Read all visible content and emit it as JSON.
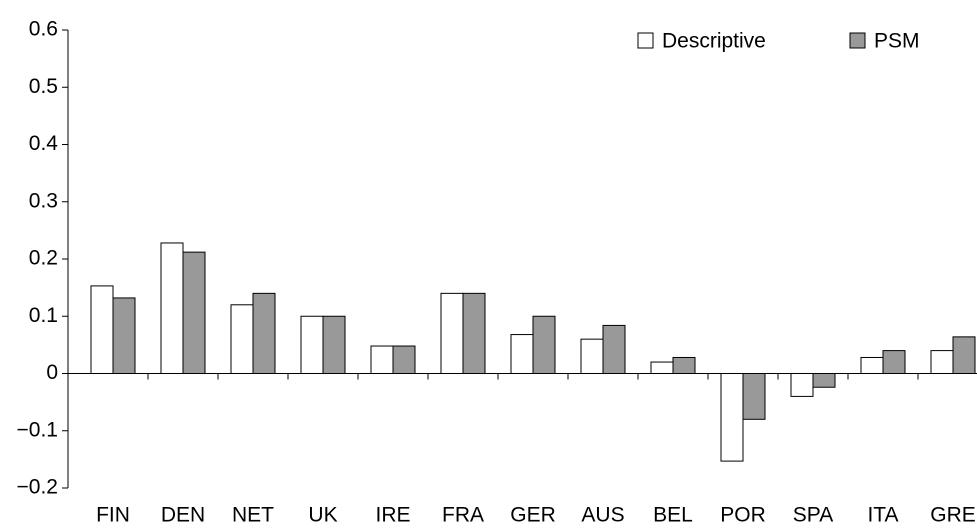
{
  "chart_data": {
    "type": "bar",
    "categories": [
      "FIN",
      "DEN",
      "NET",
      "UK",
      "IRE",
      "FRA",
      "GER",
      "AUS",
      "BEL",
      "POR",
      "SPA",
      "ITA",
      "GRE"
    ],
    "series": [
      {
        "name": "Descriptive",
        "color": "#ffffff",
        "values": [
          0.153,
          0.228,
          0.12,
          0.1,
          0.048,
          0.14,
          0.068,
          0.06,
          0.02,
          -0.153,
          -0.04,
          0.028,
          0.04
        ]
      },
      {
        "name": "PSM",
        "color": "#999999",
        "values": [
          0.132,
          0.212,
          0.14,
          0.1,
          0.048,
          0.14,
          0.1,
          0.084,
          0.028,
          -0.08,
          -0.024,
          0.04,
          0.064
        ]
      }
    ],
    "ylim": [
      -0.2,
      0.6
    ],
    "yticks": [
      {
        "value": -0.2,
        "label": "−0.2"
      },
      {
        "value": -0.1,
        "label": "−0.1"
      },
      0,
      0.1,
      0.2,
      0.3,
      0.4,
      0.5,
      0.6
    ],
    "legend": "top-right"
  }
}
